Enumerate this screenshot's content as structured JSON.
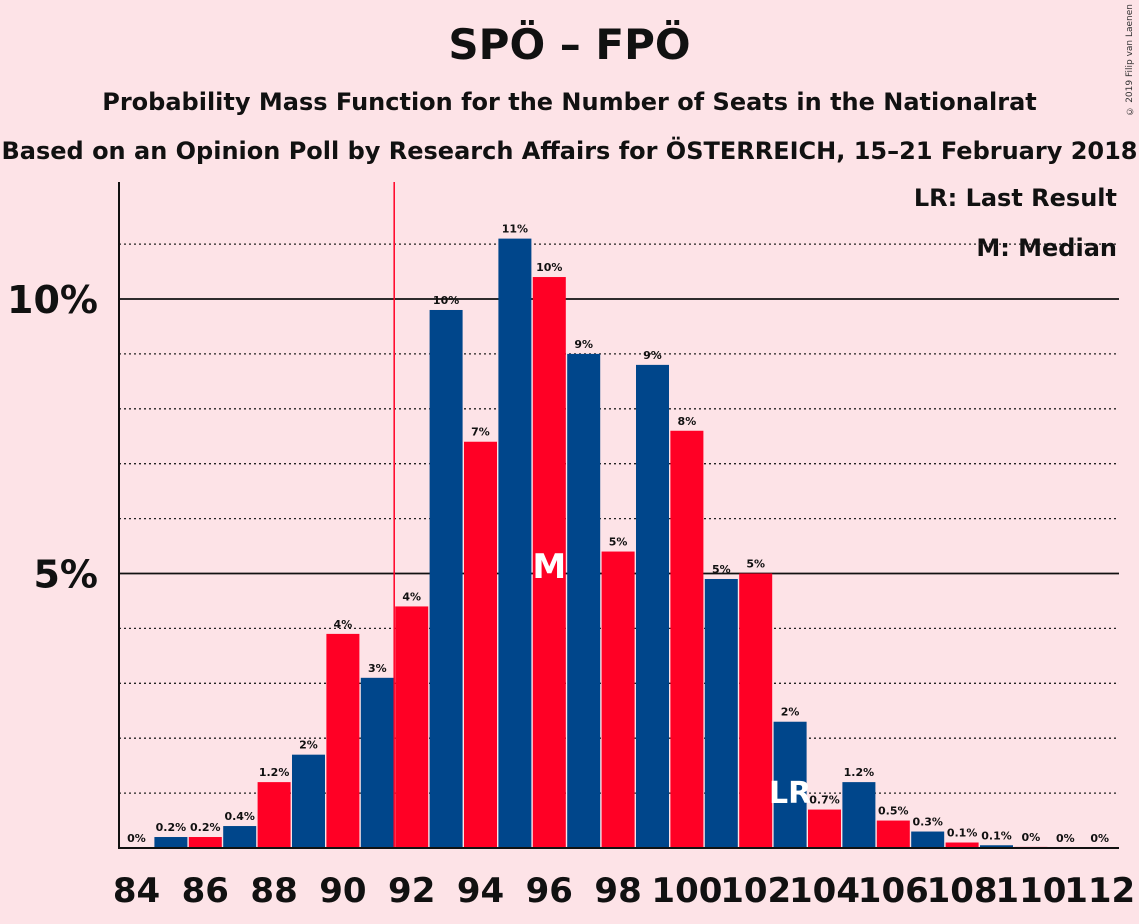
{
  "chart_data": {
    "type": "bar",
    "title": "SPÖ – FPÖ",
    "subtitle": "Probability Mass Function for the Number of Seats in the Nationalrat",
    "subtitle2": "Based on an Opinion Poll by Research Affairs for ÖSTERREICH, 15–21 February 2018",
    "copyright": "© 2019 Filip van Laenen",
    "legend": [
      "LR: Last Result",
      "M: Median"
    ],
    "x": [
      84,
      85,
      86,
      87,
      88,
      89,
      90,
      91,
      92,
      93,
      94,
      95,
      96,
      97,
      98,
      99,
      100,
      101,
      102,
      103,
      104,
      105,
      106,
      107,
      108,
      109,
      110,
      111,
      112
    ],
    "values": [
      0,
      0.2,
      0.2,
      0.4,
      1.2,
      1.7,
      3.9,
      3.1,
      4.4,
      9.8,
      7.4,
      11.1,
      10.4,
      9.0,
      5.4,
      8.8,
      7.6,
      4.9,
      5.0,
      2.3,
      0.7,
      1.2,
      0.5,
      0.3,
      0.1,
      0.05,
      0.02,
      0,
      0
    ],
    "labels": [
      "0%",
      "0.2%",
      "0.2%",
      "0.4%",
      "1.2%",
      "2%",
      "4%",
      "3%",
      "4%",
      "10%",
      "7%",
      "11%",
      "10%",
      "9%",
      "5%",
      "9%",
      "8%",
      "5%",
      "5%",
      "2%",
      "0.7%",
      "1.2%",
      "0.5%",
      "0.3%",
      "0.1%",
      "0.1%",
      "0%",
      "0%",
      "0%"
    ],
    "x_ticks": [
      "84",
      "86",
      "88",
      "90",
      "92",
      "94",
      "96",
      "98",
      "100",
      "102",
      "104",
      "106",
      "108",
      "110",
      "112"
    ],
    "y_ticks": [
      "5%",
      "10%"
    ],
    "ylim": [
      0,
      12
    ],
    "median_seat": 96,
    "median_marker": "M",
    "last_result_seat": 103,
    "last_result_marker": "LR",
    "threshold_line_x": 92,
    "colors": {
      "blue": "#00468b",
      "red": "#ff0025",
      "background": "#fde3e7",
      "axis": "#111111",
      "threshold": "#ff0025"
    }
  }
}
